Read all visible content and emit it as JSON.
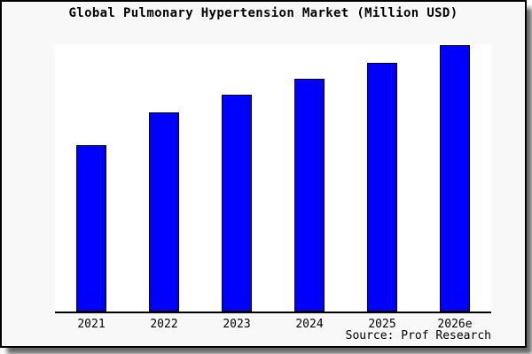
{
  "figure": {
    "title": "Global Pulmonary Hypertension Market (Million USD)",
    "source_note": "Source: Prof Research"
  },
  "colors": {
    "bar_fill": "#0000ff",
    "bar_border": "#000000",
    "figure_bg": "#f8f8f8",
    "plot_bg": "#ffffff",
    "axis": "#000000",
    "frame_border": "#000000",
    "text": "#000000",
    "shadow": "#888888"
  },
  "chart_data": {
    "type": "bar",
    "title": "Global Pulmonary Hypertension Market (Million USD)",
    "categories": [
      "2021",
      "2022",
      "2023",
      "2024",
      "2025",
      "2026e"
    ],
    "values": [
      188,
      225,
      245,
      263,
      281,
      301
    ],
    "values_note": "y-axis shows no tick labels, scale or gridlines in the image; values are relative bar heights in screen pixels (plot height 302px)",
    "xlabel": "",
    "ylabel": "",
    "ylim": [
      0,
      302
    ],
    "grid": false,
    "legend": false,
    "y_axis_visible": false,
    "x_axis_visible": true,
    "source": "Source: Prof Research"
  }
}
